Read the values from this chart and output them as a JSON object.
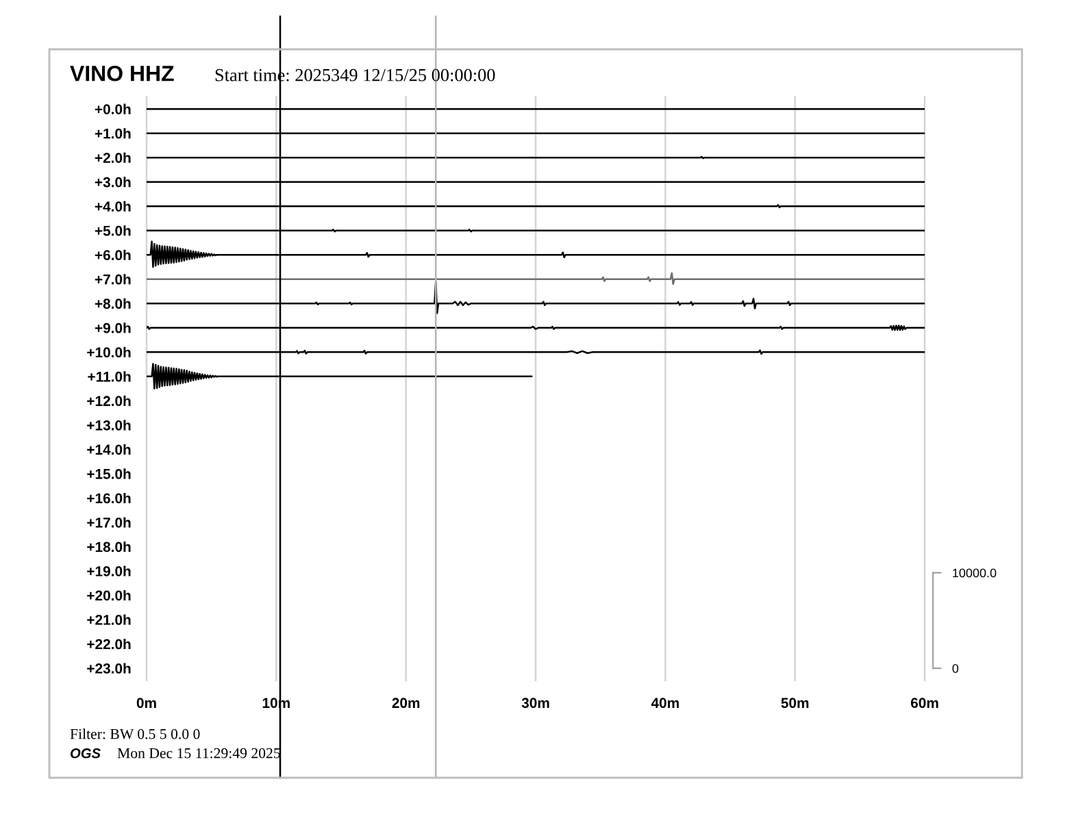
{
  "chart_data": {
    "type": "line",
    "title": "VINO HHZ",
    "subtitle": "Start time: 2025349 12/15/25 00:00:00",
    "annotations": [
      "Filter: BW 0.5 5 0.0 0",
      "OGS",
      "Mon Dec 15 11:29:49 2025"
    ],
    "xlim": [
      0,
      60
    ],
    "xticks": [
      {
        "value": 0,
        "label": "0m"
      },
      {
        "value": 10,
        "label": "10m"
      },
      {
        "value": 20,
        "label": "20m"
      },
      {
        "value": 30,
        "label": "30m"
      },
      {
        "value": 40,
        "label": "40m"
      },
      {
        "value": 50,
        "label": "50m"
      },
      {
        "value": 60,
        "label": "60m"
      }
    ],
    "ylim": [
      23.5,
      -0.5
    ],
    "yticks": [
      {
        "value": 0,
        "label": "+0.0h"
      },
      {
        "value": 1,
        "label": "+1.0h"
      },
      {
        "value": 2,
        "label": "+2.0h"
      },
      {
        "value": 3,
        "label": "+3.0h"
      },
      {
        "value": 4,
        "label": "+4.0h"
      },
      {
        "value": 5,
        "label": "+5.0h"
      },
      {
        "value": 6,
        "label": "+6.0h"
      },
      {
        "value": 7,
        "label": "+7.0h"
      },
      {
        "value": 8,
        "label": "+8.0h"
      },
      {
        "value": 9,
        "label": "+9.0h"
      },
      {
        "value": 10,
        "label": "+10.0h"
      },
      {
        "value": 11,
        "label": "+11.0h"
      },
      {
        "value": 12,
        "label": "+12.0h"
      },
      {
        "value": 13,
        "label": "+13.0h"
      },
      {
        "value": 14,
        "label": "+14.0h"
      },
      {
        "value": 15,
        "label": "+15.0h"
      },
      {
        "value": 16,
        "label": "+16.0h"
      },
      {
        "value": 17,
        "label": "+17.0h"
      },
      {
        "value": 18,
        "label": "+18.0h"
      },
      {
        "value": 19,
        "label": "+19.0h"
      },
      {
        "value": 20,
        "label": "+20.0h"
      },
      {
        "value": 21,
        "label": "+21.0h"
      },
      {
        "value": 22,
        "label": "+22.0h"
      },
      {
        "value": 23,
        "label": "+23.0h"
      }
    ],
    "y2lim": [
      -1270,
      59830
    ],
    "y2ticks": [
      0,
      {
        "value": 10000,
        "label": "10000.0"
      }
    ],
    "grid": "x",
    "ref_lines": [
      {
        "axis": "x",
        "value": 10.3,
        "color": "#000000"
      },
      {
        "axis": "x",
        "value": 22.3,
        "color": "#b4b4b4"
      }
    ],
    "series": [
      {
        "color": "#000000",
        "x": [
          0,
          60
        ],
        "values": [
          0,
          0
        ]
      },
      {
        "color": "#000000",
        "x": [
          0,
          60
        ],
        "values": [
          1,
          1
        ]
      },
      {
        "color": "#000000",
        "x": [
          0,
          42.7,
          42.8,
          42.9,
          43.0,
          60
        ],
        "values": [
          2,
          2,
          1.97,
          2.03,
          2,
          2
        ]
      },
      {
        "color": "#000000",
        "x": [
          0,
          60
        ],
        "values": [
          3,
          3
        ]
      },
      {
        "color": "#000000",
        "x": [
          0,
          48.6,
          48.7,
          48.8,
          48.9,
          60
        ],
        "values": [
          4,
          4,
          3.95,
          4.05,
          4,
          4
        ]
      },
      {
        "color": "#000000",
        "x": [
          0,
          14.3,
          14.4,
          14.5,
          14.6,
          24.8,
          24.9,
          25.0,
          25.1,
          60
        ],
        "values": [
          5,
          5,
          4.96,
          5.04,
          5,
          5,
          4.96,
          5.04,
          5,
          5
        ]
      },
      {
        "color": "#000000",
        "x": [
          0,
          0.3,
          0.4,
          0.5,
          0.6,
          0.7,
          0.8,
          0.9,
          1.0,
          1.1,
          1.2,
          1.3,
          1.4,
          1.5,
          1.6,
          1.7,
          1.8,
          1.9,
          2.0,
          2.1,
          2.2,
          2.3,
          2.4,
          2.5,
          2.6,
          2.7,
          2.8,
          2.9,
          3.0,
          3.1,
          3.2,
          3.3,
          3.4,
          3.5,
          3.6,
          3.7,
          3.8,
          3.9,
          4.0,
          4.1,
          4.2,
          4.3,
          4.4,
          4.5,
          4.6,
          4.7,
          4.8,
          4.9,
          5.0,
          5.1,
          5.2,
          5.3,
          5.4,
          16.9,
          17.0,
          17.1,
          17.2,
          32.0,
          32.1,
          32.2,
          32.3,
          60
        ],
        "values": [
          6,
          6,
          5.45,
          6.5,
          5.55,
          6.45,
          5.6,
          6.4,
          5.62,
          6.38,
          5.64,
          6.36,
          5.65,
          6.35,
          5.66,
          6.34,
          5.67,
          6.33,
          5.68,
          6.32,
          5.7,
          6.3,
          5.72,
          6.28,
          5.74,
          6.26,
          5.76,
          6.24,
          5.78,
          6.2,
          5.8,
          6.18,
          5.83,
          6.16,
          5.85,
          6.14,
          5.87,
          6.12,
          5.89,
          6.1,
          5.91,
          6.09,
          5.92,
          6.07,
          5.94,
          6.05,
          5.95,
          6.04,
          5.96,
          6.03,
          5.98,
          6.02,
          6,
          6,
          5.92,
          6.08,
          6,
          6,
          5.9,
          6.1,
          6,
          6
        ]
      },
      {
        "color": "#6e6e6e",
        "x": [
          0,
          35.1,
          35.2,
          35.3,
          35.4,
          38.6,
          38.7,
          38.8,
          38.9,
          40.4,
          40.5,
          40.6,
          40.7,
          60
        ],
        "values": [
          7,
          7,
          6.92,
          7.08,
          7,
          7,
          6.92,
          7.08,
          7,
          7,
          6.75,
          7.2,
          7,
          7
        ]
      },
      {
        "color": "#000000",
        "x": [
          0,
          13.0,
          13.1,
          13.2,
          13.3,
          15.6,
          15.7,
          15.8,
          15.9,
          22.2,
          22.3,
          22.4,
          22.5,
          23.6,
          23.8,
          24.0,
          24.2,
          24.4,
          24.6,
          24.8,
          25.0,
          30.5,
          30.6,
          30.7,
          30.8,
          40.9,
          41.0,
          41.1,
          41.2,
          41.9,
          42.0,
          42.1,
          42.2,
          45.9,
          46.0,
          46.1,
          46.2,
          46.7,
          46.8,
          46.9,
          47.0,
          49.4,
          49.5,
          49.6,
          49.7,
          60
        ],
        "values": [
          8,
          8,
          7.96,
          8.04,
          8,
          8,
          7.96,
          8.04,
          8,
          8,
          7.1,
          8.4,
          8,
          8,
          7.93,
          8.07,
          7.93,
          8.07,
          7.95,
          8.05,
          8,
          8,
          7.93,
          8.07,
          8,
          8,
          7.94,
          8.06,
          8,
          8,
          7.94,
          8.06,
          8,
          8,
          7.9,
          8.1,
          8,
          8,
          7.8,
          8.2,
          8,
          8,
          7.93,
          8.07,
          8,
          8
        ]
      },
      {
        "color": "#000000",
        "x": [
          0,
          0.1,
          0.2,
          0.3,
          29.6,
          29.8,
          30.0,
          30.2,
          31.2,
          31.3,
          31.4,
          31.5,
          48.8,
          48.9,
          49.0,
          49.1,
          57.3,
          57.4,
          57.5,
          57.6,
          57.7,
          57.8,
          57.9,
          58.0,
          58.1,
          58.2,
          58.3,
          58.4,
          58.5,
          58.6,
          60
        ],
        "values": [
          9,
          8.95,
          9.05,
          9,
          9,
          8.95,
          9.05,
          9,
          9,
          8.95,
          9.05,
          9,
          9,
          8.95,
          9.05,
          9,
          9,
          8.93,
          9.08,
          8.92,
          9.09,
          8.91,
          9.09,
          8.91,
          9.09,
          8.92,
          9.08,
          8.94,
          9.05,
          9,
          9
        ]
      },
      {
        "color": "#000000",
        "x": [
          0,
          11.5,
          11.6,
          11.7,
          11.8,
          12.1,
          12.2,
          12.3,
          12.4,
          16.7,
          16.8,
          16.9,
          17.0,
          32.4,
          32.8,
          33.2,
          33.6,
          34.0,
          34.4,
          47.2,
          47.3,
          47.4,
          47.5,
          60
        ],
        "values": [
          10,
          10,
          9.95,
          10.05,
          10,
          10,
          9.94,
          10.06,
          10,
          10,
          9.94,
          10.06,
          10,
          10,
          9.96,
          10.04,
          9.96,
          10.04,
          10,
          10,
          9.93,
          10.07,
          10,
          10
        ]
      },
      {
        "color": "#000000",
        "x": [
          0,
          0.4,
          0.5,
          0.6,
          0.7,
          0.8,
          0.9,
          1.0,
          1.1,
          1.2,
          1.3,
          1.4,
          1.5,
          1.6,
          1.7,
          1.8,
          1.9,
          2.0,
          2.1,
          2.2,
          2.3,
          2.4,
          2.5,
          2.6,
          2.7,
          2.8,
          2.9,
          3.0,
          3.1,
          3.2,
          3.3,
          3.4,
          3.5,
          3.6,
          3.7,
          3.8,
          3.9,
          4.0,
          4.1,
          4.2,
          4.3,
          4.4,
          4.5,
          4.6,
          4.7,
          4.8,
          4.9,
          5.0,
          5.1,
          5.2,
          5.3,
          5.4,
          5.5,
          29.7
        ],
        "values": [
          11,
          11,
          10.48,
          11.5,
          10.52,
          11.48,
          10.56,
          11.44,
          10.6,
          11.4,
          10.62,
          11.38,
          10.63,
          11.37,
          10.64,
          11.36,
          10.66,
          11.34,
          10.67,
          11.33,
          10.68,
          11.31,
          10.7,
          11.29,
          10.72,
          11.27,
          10.74,
          11.25,
          10.76,
          11.22,
          10.8,
          11.19,
          10.83,
          11.16,
          10.85,
          11.14,
          10.87,
          11.12,
          10.89,
          11.1,
          10.91,
          11.08,
          10.93,
          11.06,
          10.95,
          11.05,
          10.96,
          11.04,
          10.97,
          11.02,
          10.98,
          11.01,
          11,
          11
        ]
      }
    ]
  }
}
